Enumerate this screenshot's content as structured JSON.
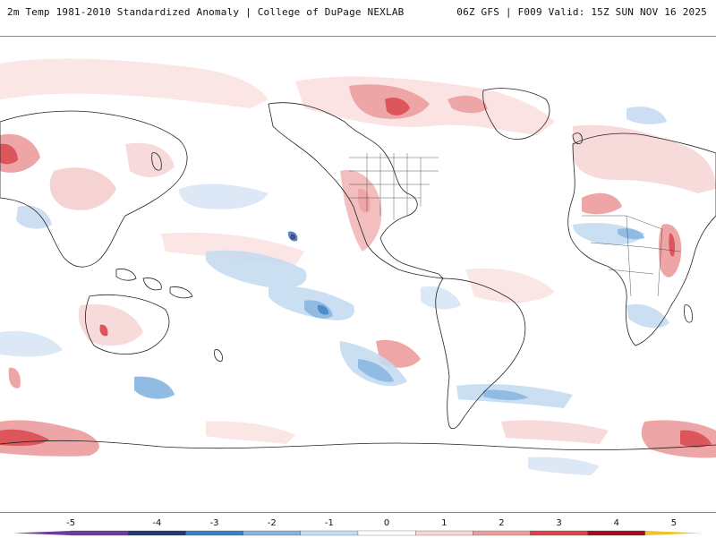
{
  "header": {
    "title_left": "2m Temp 1981-2010 Standardized Anomaly | College of DuPage NEXLAB",
    "title_right": "06Z GFS | F009 Valid: 15Z SUN NOV 16 2025"
  },
  "colorbar": {
    "labels": [
      "-5",
      "-4",
      "-3",
      "-2",
      "-1",
      "0",
      "1",
      "2",
      "3",
      "4",
      "5"
    ],
    "colors": [
      "#6a3d9a",
      "#1f3a6e",
      "#3d7fc4",
      "#86b4e0",
      "#c6dcf1",
      "#ffffff",
      "#f7d6d6",
      "#ec9c9c",
      "#d9444a",
      "#a30d1e",
      "#f2c12e"
    ]
  }
}
